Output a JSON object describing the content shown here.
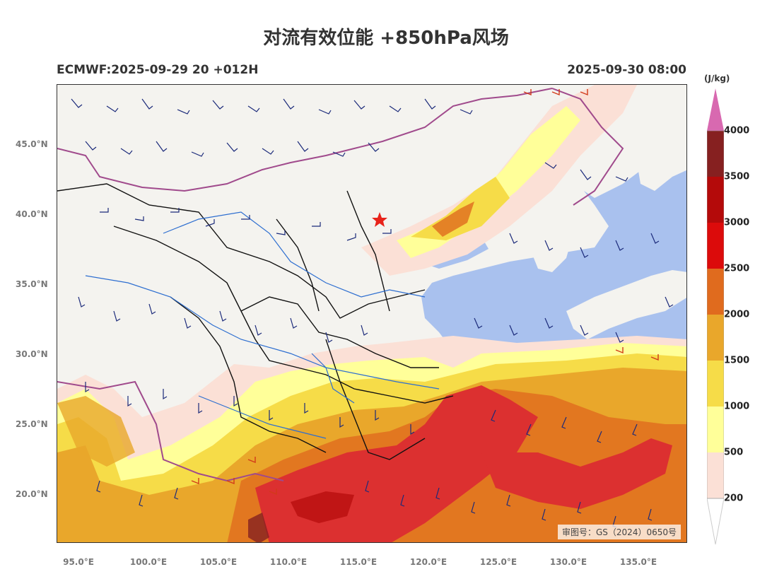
{
  "header": {
    "title": "对流有效位能 +850hPa风场",
    "model_run": "ECMWF:2025-09-29 20 +012H",
    "valid_time": "2025-09-30 08:00"
  },
  "map": {
    "lat_ticks": [
      "45.0°N",
      "40.0°N",
      "35.0°N",
      "30.0°N",
      "25.0°N",
      "20.0°N"
    ],
    "lon_ticks": [
      "95.0°E",
      "100.0°E",
      "105.0°E",
      "110.0°E",
      "115.0°E",
      "120.0°E",
      "125.0°E",
      "130.0°E",
      "135.0°E"
    ],
    "credit": "审图号：GS（2024）0650号",
    "marker": "red-star-icon",
    "colors": {
      "land": "#f4f3ef",
      "sea": "#a9c1ee",
      "border": "#000000",
      "province": "#333333",
      "intl": "#a04a8c",
      "river": "#2d6ed0",
      "barb": "#1b2a7a",
      "barb_strong": "#d23a1a"
    }
  },
  "colorbar": {
    "unit": "(J/kg)",
    "levels": [
      "200",
      "500",
      "1000",
      "1500",
      "2000",
      "2500",
      "3000",
      "3500",
      "4000"
    ],
    "colors": [
      "#fbe0d6",
      "#ffff99",
      "#f6dc48",
      "#e9a72b",
      "#e06b1e",
      "#dc0b0b",
      "#b40a0a",
      "#862020",
      "#d869b0"
    ]
  }
}
